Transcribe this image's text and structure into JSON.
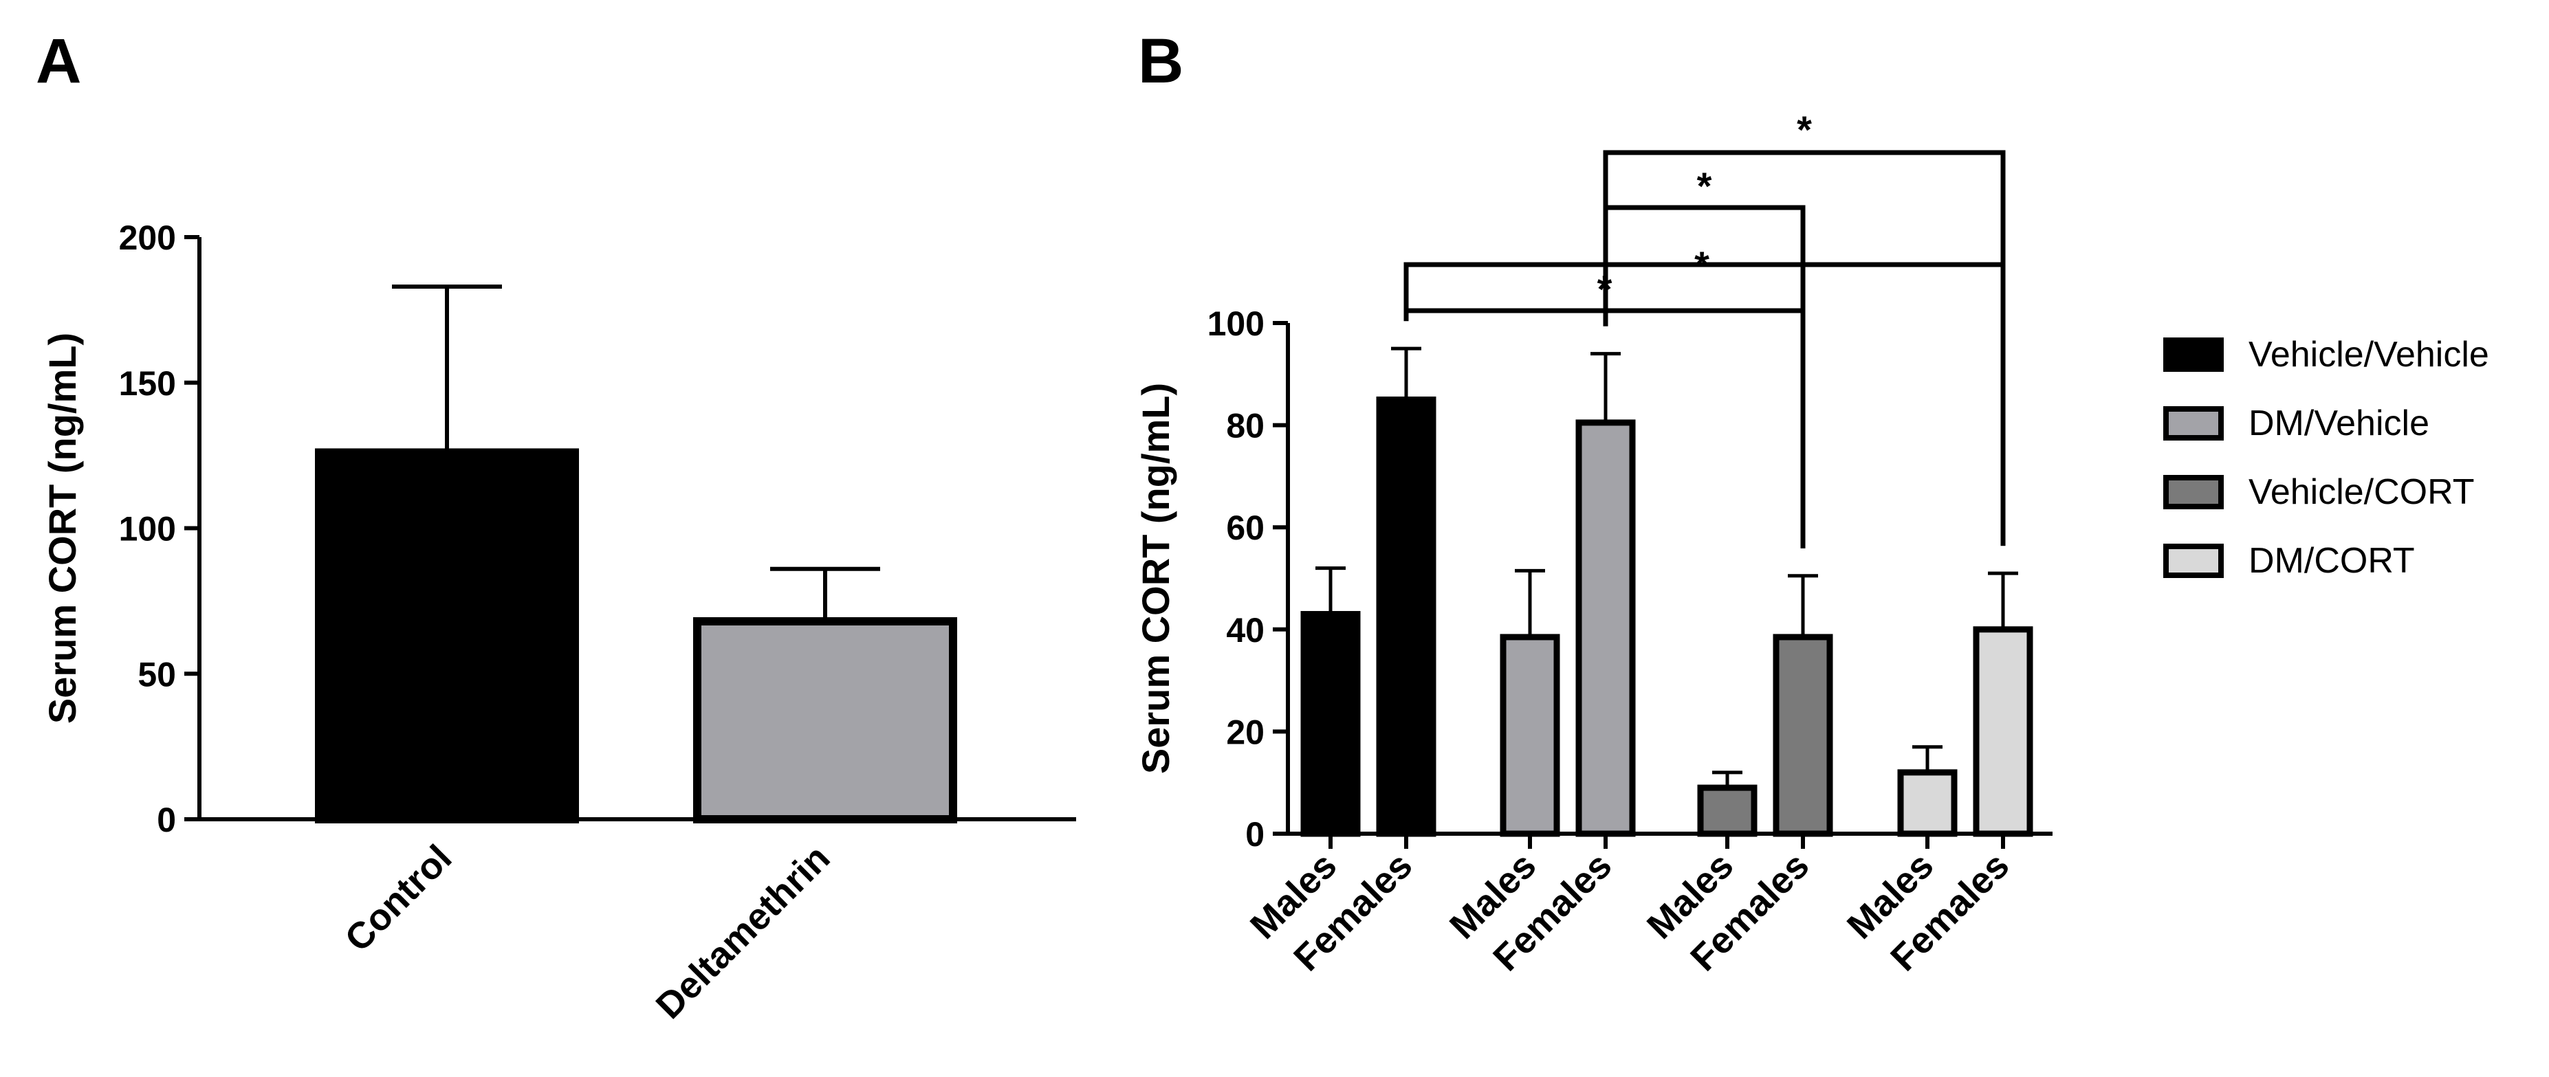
{
  "panels": {
    "a_label": "A",
    "b_label": "B"
  },
  "chart_data": [
    {
      "type": "bar",
      "panel": "A",
      "ylabel": "Serum CORT (ng/mL)",
      "xlabel": "",
      "ylim": [
        0,
        200
      ],
      "yticks": [
        0,
        50,
        100,
        150,
        200
      ],
      "categories": [
        "Control",
        "Deltamethrin"
      ],
      "values": [
        126,
        68
      ],
      "errors": [
        57,
        18
      ],
      "colors": [
        "#000000",
        "#a3a3a8"
      ]
    },
    {
      "type": "bar",
      "panel": "B",
      "ylabel": "Serum CORT (ng/mL)",
      "xlabel": "",
      "ylim": [
        0,
        100
      ],
      "yticks": [
        0,
        20,
        40,
        60,
        80,
        100
      ],
      "groups": [
        {
          "legend": "Vehicle/Vehicle",
          "color": "#000000",
          "bars": [
            {
              "label": "Males",
              "value": 43,
              "error": 9
            },
            {
              "label": "Females",
              "value": 85,
              "error": 10
            }
          ]
        },
        {
          "legend": "DM/Vehicle",
          "color": "#a3a3a8",
          "bars": [
            {
              "label": "Males",
              "value": 38.5,
              "error": 13
            },
            {
              "label": "Females",
              "value": 80.5,
              "error": 13.5
            }
          ]
        },
        {
          "legend": "Vehicle/CORT",
          "color": "#7a7a7a",
          "bars": [
            {
              "label": "Males",
              "value": 9,
              "error": 3
            },
            {
              "label": "Females",
              "value": 38.5,
              "error": 12
            }
          ]
        },
        {
          "legend": "DM/CORT",
          "color": "#d9d9d9",
          "bars": [
            {
              "label": "Males",
              "value": 12,
              "error": 5
            },
            {
              "label": "Females",
              "value": 40,
              "error": 11
            }
          ]
        }
      ],
      "significance": [
        {
          "from_group": 0,
          "to_group": 2,
          "bar": "Females",
          "label": "*"
        },
        {
          "from_group": 0,
          "to_group": 3,
          "bar": "Females",
          "label": "*"
        },
        {
          "from_group": 1,
          "to_group": 2,
          "bar": "Females",
          "label": "*"
        },
        {
          "from_group": 1,
          "to_group": 3,
          "bar": "Females",
          "label": "*"
        }
      ],
      "legend_position": "right"
    }
  ]
}
